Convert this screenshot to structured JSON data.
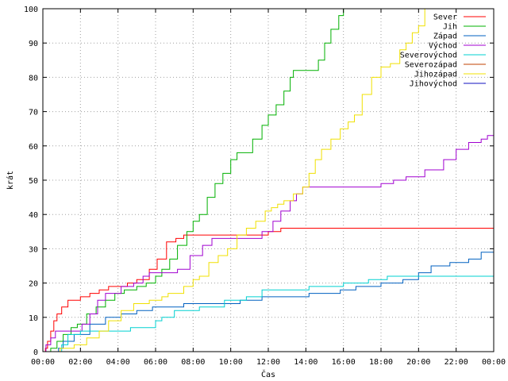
{
  "chart_data": {
    "type": "line",
    "xlabel": "Čas",
    "ylabel": "krát",
    "xlim": [
      0,
      1440
    ],
    "ylim": [
      0,
      100
    ],
    "x_ticks": [
      {
        "v": 0,
        "label": "00:00"
      },
      {
        "v": 120,
        "label": "02:00"
      },
      {
        "v": 240,
        "label": "04:00"
      },
      {
        "v": 360,
        "label": "06:00"
      },
      {
        "v": 480,
        "label": "08:00"
      },
      {
        "v": 600,
        "label": "10:00"
      },
      {
        "v": 720,
        "label": "12:00"
      },
      {
        "v": 840,
        "label": "14:00"
      },
      {
        "v": 960,
        "label": "16:00"
      },
      {
        "v": 1080,
        "label": "18:00"
      },
      {
        "v": 1200,
        "label": "20:00"
      },
      {
        "v": 1320,
        "label": "22:00"
      },
      {
        "v": 1440,
        "label": "00:00"
      }
    ],
    "y_ticks": [
      {
        "v": 0,
        "label": "0"
      },
      {
        "v": 10,
        "label": "10"
      },
      {
        "v": 20,
        "label": "20"
      },
      {
        "v": 30,
        "label": "30"
      },
      {
        "v": 40,
        "label": "40"
      },
      {
        "v": 50,
        "label": "50"
      },
      {
        "v": 60,
        "label": "60"
      },
      {
        "v": 70,
        "label": "70"
      },
      {
        "v": 80,
        "label": "80"
      },
      {
        "v": 90,
        "label": "90"
      },
      {
        "v": 100,
        "label": "100"
      }
    ],
    "grid": "dotted",
    "legend_position": "top-right",
    "series": [
      {
        "name": "Sever",
        "color": "#ff0000",
        "points": [
          [
            0,
            0
          ],
          [
            8,
            1
          ],
          [
            15,
            3
          ],
          [
            25,
            6
          ],
          [
            35,
            9
          ],
          [
            45,
            11
          ],
          [
            60,
            13
          ],
          [
            80,
            15
          ],
          [
            120,
            16
          ],
          [
            150,
            17
          ],
          [
            180,
            18
          ],
          [
            210,
            19
          ],
          [
            250,
            19
          ],
          [
            270,
            20
          ],
          [
            300,
            21
          ],
          [
            340,
            24
          ],
          [
            365,
            27
          ],
          [
            395,
            32
          ],
          [
            425,
            33
          ],
          [
            450,
            34
          ],
          [
            720,
            35
          ],
          [
            760,
            36
          ],
          [
            1440,
            36
          ]
        ]
      },
      {
        "name": "Jih",
        "color": "#00b000",
        "points": [
          [
            0,
            0
          ],
          [
            25,
            1
          ],
          [
            45,
            3
          ],
          [
            65,
            5
          ],
          [
            90,
            7
          ],
          [
            110,
            8
          ],
          [
            140,
            11
          ],
          [
            170,
            13
          ],
          [
            200,
            15
          ],
          [
            230,
            17
          ],
          [
            260,
            18
          ],
          [
            300,
            19
          ],
          [
            330,
            20
          ],
          [
            360,
            22
          ],
          [
            380,
            24
          ],
          [
            405,
            27
          ],
          [
            430,
            31
          ],
          [
            460,
            35
          ],
          [
            480,
            38
          ],
          [
            500,
            40
          ],
          [
            525,
            45
          ],
          [
            550,
            49
          ],
          [
            575,
            52
          ],
          [
            600,
            56
          ],
          [
            620,
            58
          ],
          [
            645,
            58
          ],
          [
            670,
            62
          ],
          [
            700,
            66
          ],
          [
            720,
            69
          ],
          [
            745,
            72
          ],
          [
            770,
            76
          ],
          [
            790,
            80
          ],
          [
            800,
            82
          ],
          [
            860,
            82
          ],
          [
            880,
            85
          ],
          [
            900,
            90
          ],
          [
            920,
            94
          ],
          [
            945,
            98
          ],
          [
            960,
            100
          ]
        ]
      },
      {
        "name": "Západ",
        "color": "#0060c0",
        "points": [
          [
            0,
            0
          ],
          [
            50,
            1
          ],
          [
            65,
            3
          ],
          [
            100,
            5
          ],
          [
            150,
            8
          ],
          [
            200,
            10
          ],
          [
            250,
            11
          ],
          [
            300,
            12
          ],
          [
            350,
            13
          ],
          [
            450,
            14
          ],
          [
            630,
            15
          ],
          [
            700,
            16
          ],
          [
            850,
            17
          ],
          [
            950,
            18
          ],
          [
            1000,
            19
          ],
          [
            1080,
            20
          ],
          [
            1150,
            21
          ],
          [
            1200,
            23
          ],
          [
            1240,
            25
          ],
          [
            1300,
            26
          ],
          [
            1360,
            27
          ],
          [
            1400,
            29
          ],
          [
            1440,
            29
          ]
        ]
      },
      {
        "name": "Východ",
        "color": "#a000d0",
        "points": [
          [
            0,
            0
          ],
          [
            10,
            2
          ],
          [
            25,
            4
          ],
          [
            40,
            6
          ],
          [
            100,
            6
          ],
          [
            125,
            8
          ],
          [
            150,
            11
          ],
          [
            175,
            15
          ],
          [
            200,
            17
          ],
          [
            250,
            19
          ],
          [
            290,
            20
          ],
          [
            320,
            22
          ],
          [
            340,
            23
          ],
          [
            430,
            24
          ],
          [
            470,
            28
          ],
          [
            510,
            31
          ],
          [
            540,
            33
          ],
          [
            600,
            33
          ],
          [
            640,
            33
          ],
          [
            700,
            35
          ],
          [
            735,
            38
          ],
          [
            760,
            41
          ],
          [
            790,
            44
          ],
          [
            810,
            46
          ],
          [
            830,
            48
          ],
          [
            1000,
            48
          ],
          [
            1040,
            48
          ],
          [
            1080,
            49
          ],
          [
            1120,
            50
          ],
          [
            1160,
            51
          ],
          [
            1220,
            53
          ],
          [
            1280,
            56
          ],
          [
            1320,
            59
          ],
          [
            1360,
            61
          ],
          [
            1400,
            62
          ],
          [
            1420,
            63
          ],
          [
            1440,
            63
          ]
        ]
      },
      {
        "name": "Severovýchod",
        "color": "#00d0d0",
        "points": [
          [
            0,
            0
          ],
          [
            60,
            2
          ],
          [
            80,
            5
          ],
          [
            120,
            6
          ],
          [
            200,
            6
          ],
          [
            280,
            7
          ],
          [
            360,
            9
          ],
          [
            380,
            10
          ],
          [
            420,
            12
          ],
          [
            500,
            13
          ],
          [
            580,
            15
          ],
          [
            650,
            16
          ],
          [
            700,
            18
          ],
          [
            850,
            19
          ],
          [
            960,
            20
          ],
          [
            1040,
            21
          ],
          [
            1100,
            22
          ],
          [
            1440,
            22
          ]
        ]
      },
      {
        "name": "Severozápad",
        "color": "#c04000",
        "points": []
      },
      {
        "name": "Jihozápad",
        "color": "#f0e000",
        "points": [
          [
            0,
            0
          ],
          [
            55,
            1
          ],
          [
            100,
            2
          ],
          [
            140,
            4
          ],
          [
            180,
            6
          ],
          [
            210,
            9
          ],
          [
            250,
            12
          ],
          [
            290,
            14
          ],
          [
            340,
            15
          ],
          [
            380,
            16
          ],
          [
            400,
            17
          ],
          [
            450,
            19
          ],
          [
            480,
            21
          ],
          [
            500,
            22
          ],
          [
            530,
            26
          ],
          [
            560,
            28
          ],
          [
            590,
            30
          ],
          [
            620,
            34
          ],
          [
            650,
            36
          ],
          [
            680,
            38
          ],
          [
            710,
            41
          ],
          [
            730,
            42
          ],
          [
            750,
            43
          ],
          [
            770,
            44
          ],
          [
            800,
            46
          ],
          [
            830,
            48
          ],
          [
            850,
            52
          ],
          [
            870,
            56
          ],
          [
            890,
            59
          ],
          [
            920,
            62
          ],
          [
            950,
            65
          ],
          [
            975,
            67
          ],
          [
            995,
            69
          ],
          [
            1020,
            75
          ],
          [
            1050,
            80
          ],
          [
            1080,
            83
          ],
          [
            1110,
            84
          ],
          [
            1140,
            88
          ],
          [
            1160,
            90
          ],
          [
            1180,
            93
          ],
          [
            1200,
            95
          ],
          [
            1220,
            100
          ]
        ]
      },
      {
        "name": "Jihovýchod",
        "color": "#1010c0",
        "points": []
      }
    ]
  }
}
